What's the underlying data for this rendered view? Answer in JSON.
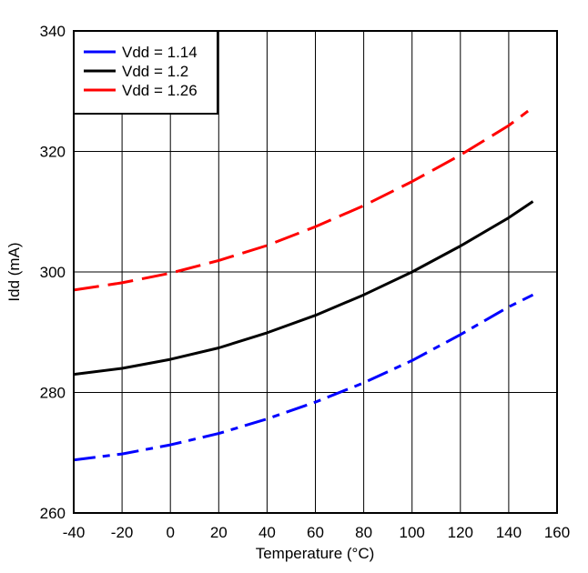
{
  "chart_data": {
    "type": "line",
    "title": "",
    "xlabel": "Temperature (°C)",
    "ylabel": "Idd (mA)",
    "xlim": [
      -40,
      160
    ],
    "ylim": [
      260,
      340
    ],
    "xticks": [
      -40,
      -20,
      0,
      20,
      40,
      60,
      80,
      100,
      120,
      140,
      160
    ],
    "yticks": [
      260,
      280,
      300,
      320,
      340
    ],
    "grid": true,
    "legend_position": "top-left",
    "series": [
      {
        "name": "Vdd = 1.14",
        "color": "#0000ff",
        "dash": "long-short dash",
        "x": [
          -40,
          -20,
          0,
          20,
          40,
          60,
          80,
          100,
          120,
          140,
          150
        ],
        "y": [
          268.8,
          269.8,
          271.3,
          273.2,
          275.6,
          278.4,
          281.6,
          285.3,
          289.6,
          294.2,
          296.2
        ]
      },
      {
        "name": "Vdd = 1.2",
        "color": "#000000",
        "dash": "solid",
        "x": [
          -40,
          -20,
          0,
          20,
          40,
          60,
          80,
          100,
          120,
          140,
          150
        ],
        "y": [
          283.0,
          284.0,
          285.5,
          287.4,
          289.9,
          292.8,
          296.2,
          300.0,
          304.3,
          309.0,
          311.7
        ]
      },
      {
        "name": "Vdd = 1.26",
        "color": "#ff0000",
        "dash": "long dash",
        "x": [
          -40,
          -20,
          0,
          20,
          40,
          60,
          80,
          100,
          120,
          140,
          148
        ],
        "y": [
          297.0,
          298.2,
          299.8,
          301.9,
          304.4,
          307.5,
          311.0,
          315.0,
          319.4,
          324.3,
          326.7
        ]
      }
    ]
  }
}
